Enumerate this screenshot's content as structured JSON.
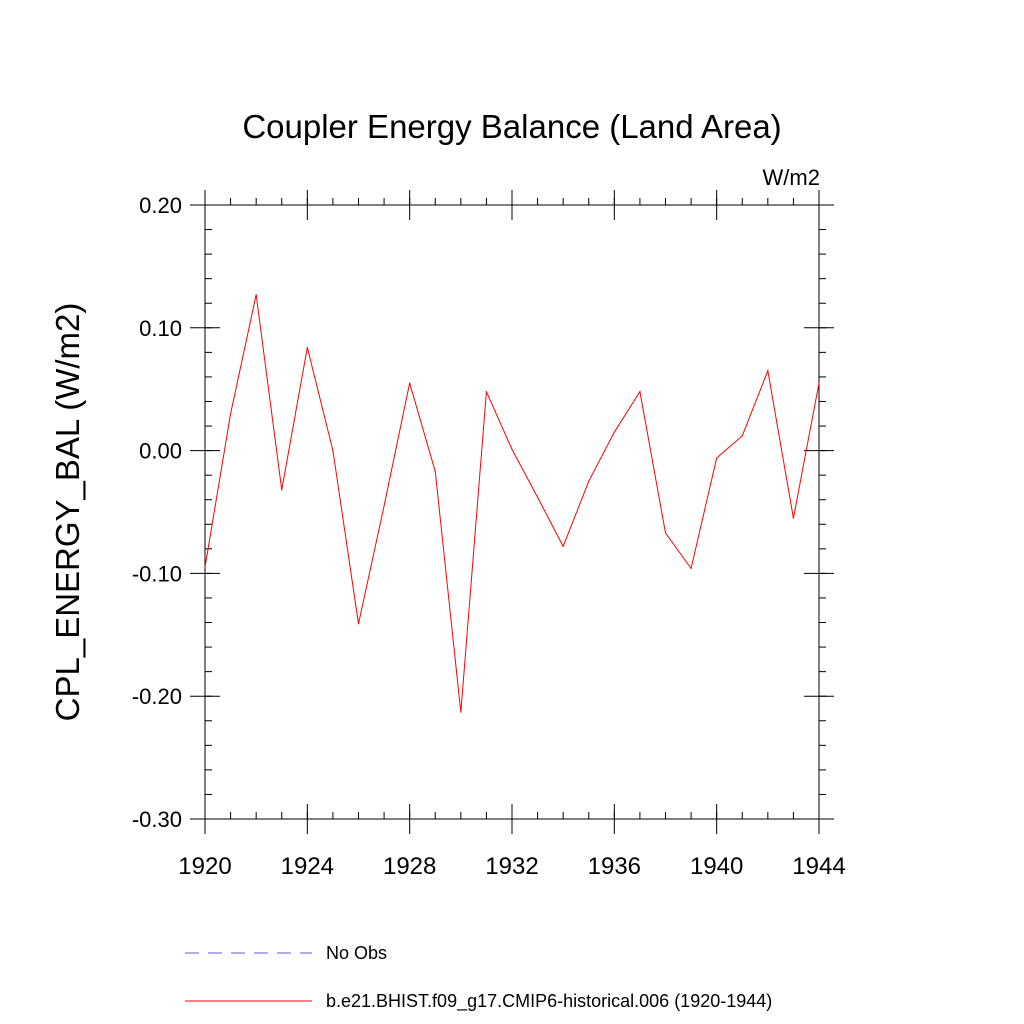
{
  "chart_data": {
    "type": "line",
    "title": "Coupler Energy Balance (Land Area)",
    "units": "W/m2",
    "ylabel": "CPL_ENERGY_BAL  (W/m2)",
    "xlabel": "",
    "xlim": [
      1920,
      1944
    ],
    "ylim": [
      -0.3,
      0.2
    ],
    "x_ticks": [
      1920,
      1924,
      1928,
      1932,
      1936,
      1940,
      1944
    ],
    "x_tick_labels": [
      "1920",
      "1924",
      "1928",
      "1932",
      "1936",
      "1940",
      "1944"
    ],
    "y_ticks": [
      -0.3,
      -0.2,
      -0.1,
      0.0,
      0.1,
      0.2
    ],
    "y_tick_labels": [
      "-0.30",
      "-0.20",
      "-0.10",
      "0.00",
      "0.10",
      "0.20"
    ],
    "x": [
      1920,
      1921,
      1922,
      1923,
      1924,
      1925,
      1926,
      1927,
      1928,
      1929,
      1930,
      1931,
      1932,
      1933,
      1934,
      1935,
      1936,
      1937,
      1938,
      1939,
      1940,
      1941,
      1942,
      1943,
      1944
    ],
    "series": [
      {
        "name": "b.e21.BHIST.f09_g17.CMIP6-historical.006 (1920-1944)",
        "color": "#ff0000",
        "style": "solid",
        "values": [
          -0.095,
          0.03,
          0.127,
          -0.032,
          0.084,
          0.0,
          -0.141,
          -0.045,
          0.055,
          -0.017,
          -0.213,
          0.048,
          0.001,
          -0.038,
          -0.078,
          -0.025,
          0.015,
          0.048,
          -0.067,
          -0.096,
          -0.006,
          0.012,
          0.065,
          -0.055,
          0.055
        ]
      }
    ],
    "legend": [
      {
        "label": "No Obs",
        "color": "#6a5acd",
        "style": "dashed"
      },
      {
        "label": "b.e21.BHIST.f09_g17.CMIP6-historical.006 (1920-1944)",
        "color": "#ff0000",
        "style": "solid"
      }
    ],
    "legend_position": "bottom"
  }
}
